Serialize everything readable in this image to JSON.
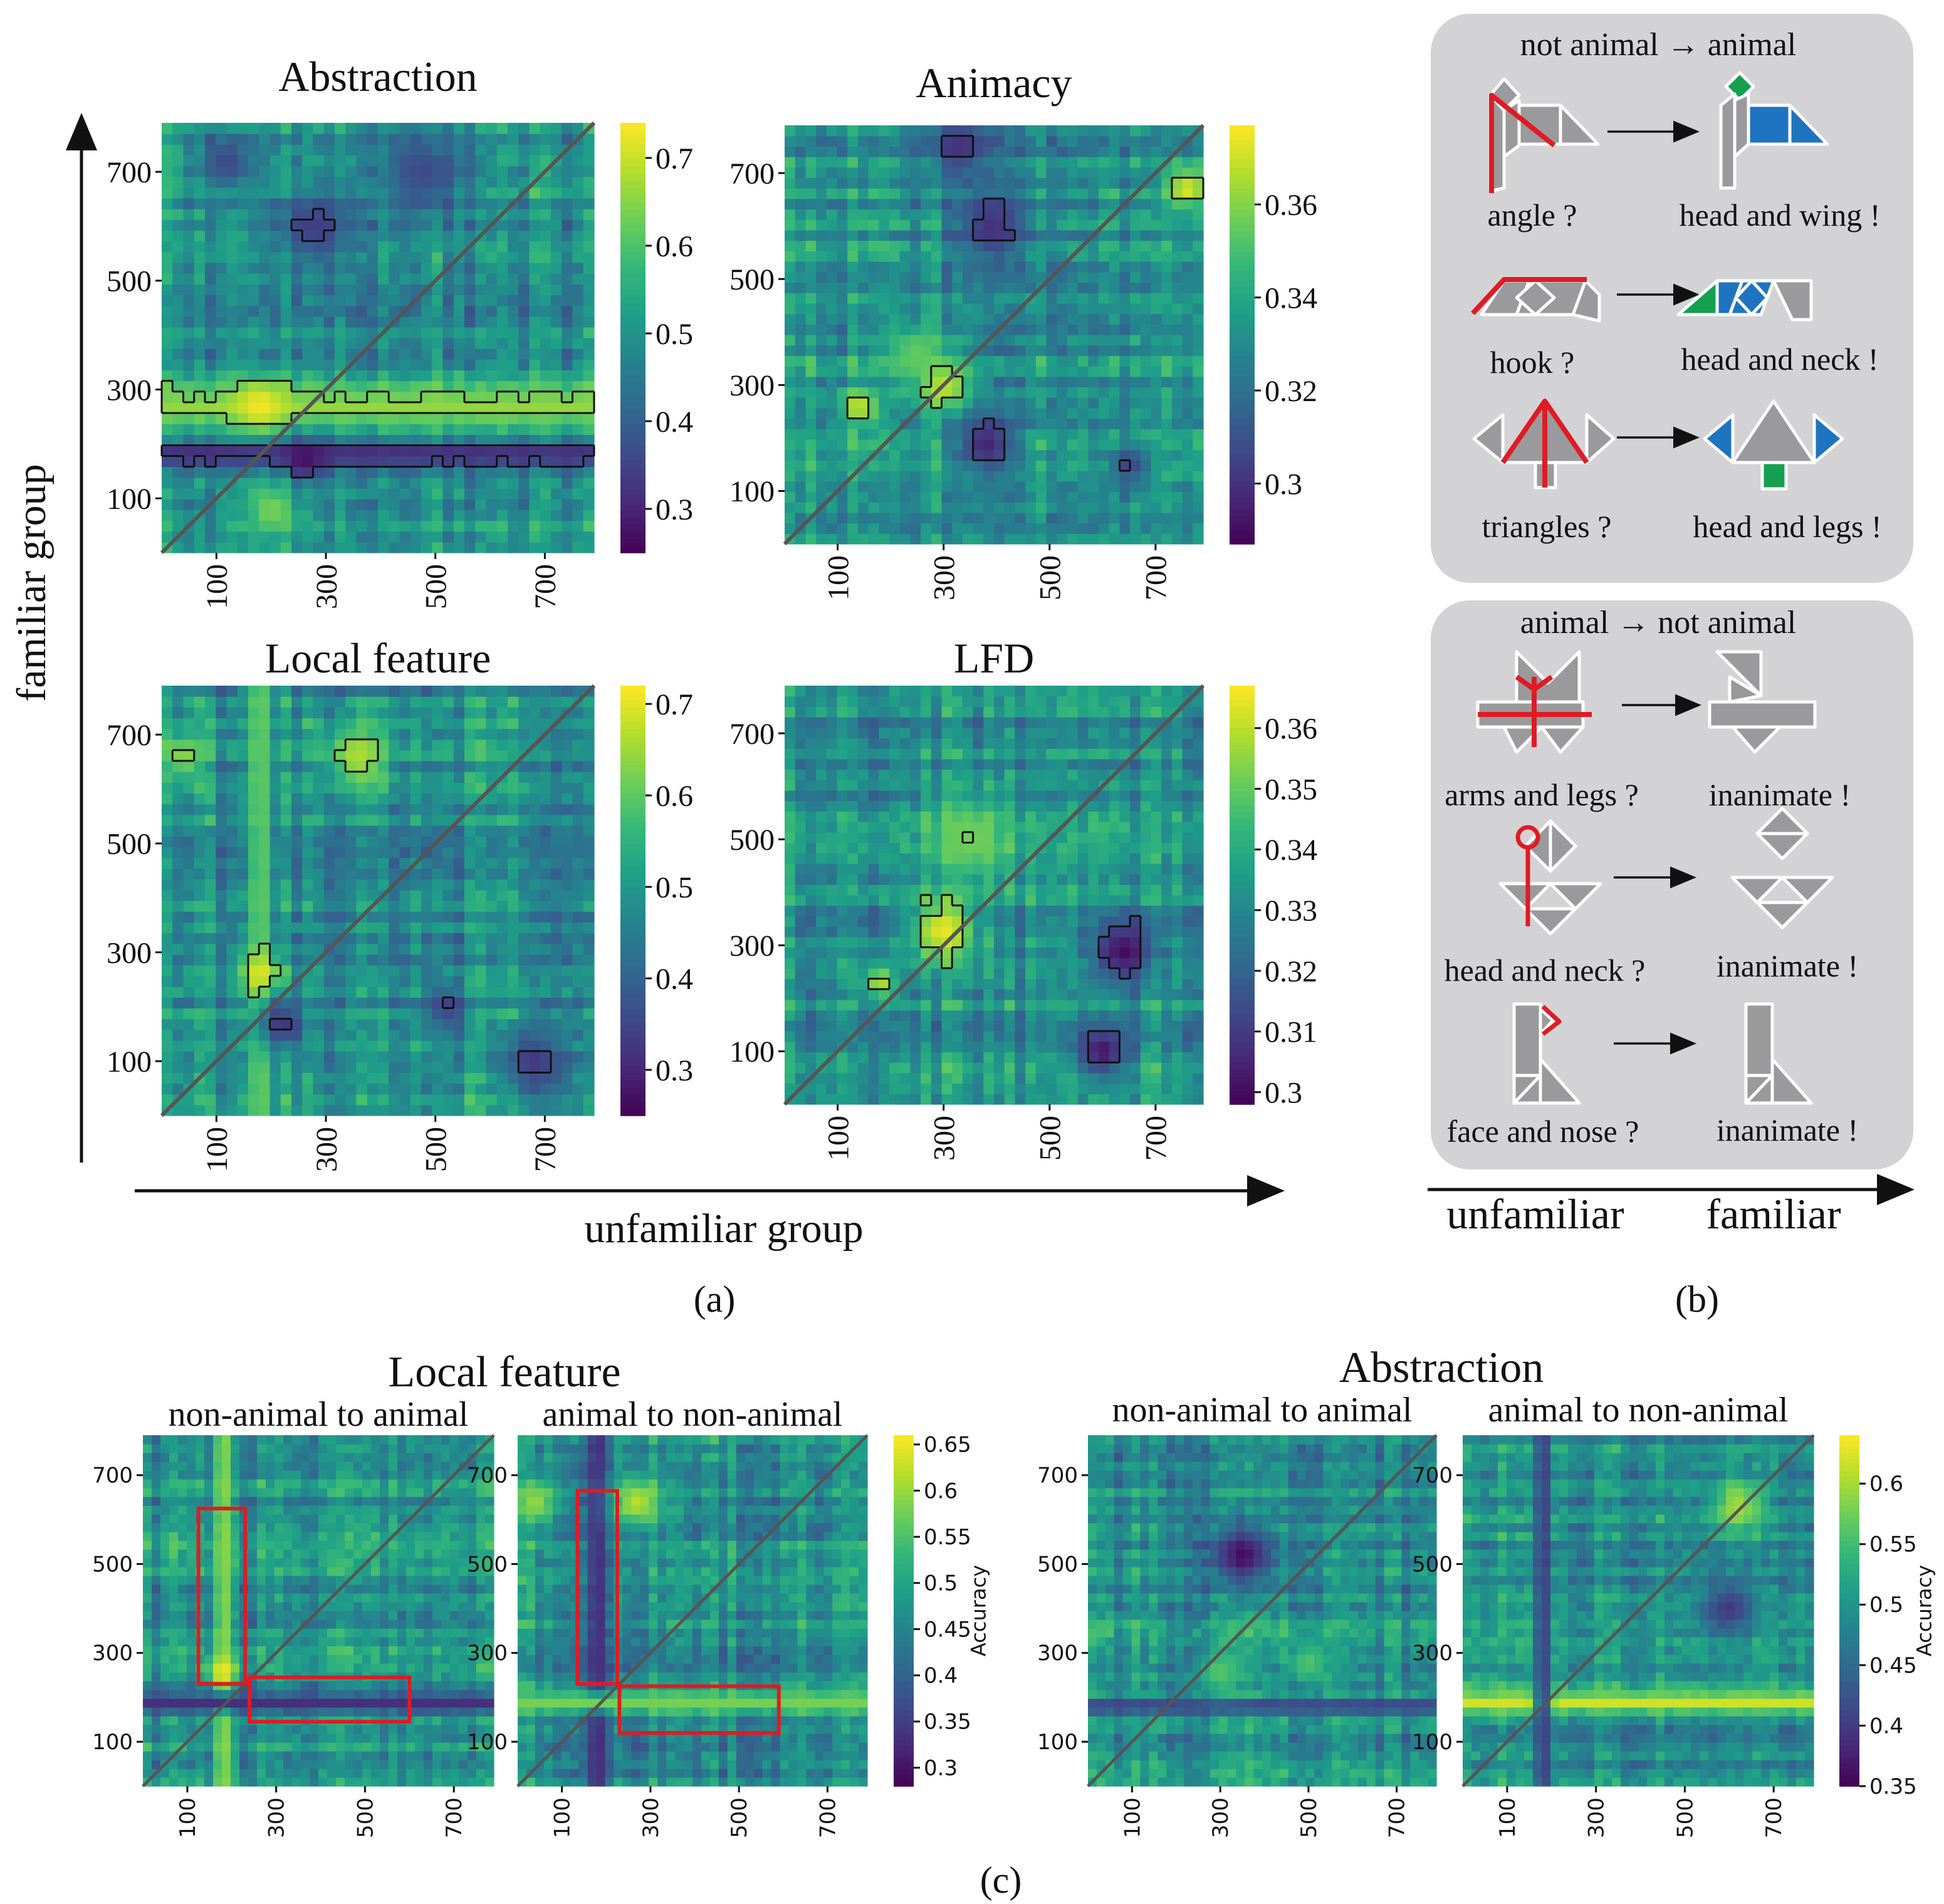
{
  "panel_labels": {
    "a": "(a)",
    "b": "(b)",
    "c": "(c)"
  },
  "axes": {
    "y_group": "familiar group",
    "x_group": "unfamiliar group"
  },
  "panel_b": {
    "box1": {
      "header": "not animal → animal",
      "rows": [
        {
          "left": "angle ?",
          "right": "head and wing !"
        },
        {
          "left": "hook ?",
          "right": "head and neck !"
        },
        {
          "left": "triangles ?",
          "right": "head and legs !"
        }
      ]
    },
    "box2": {
      "header": "animal → not animal",
      "rows": [
        {
          "left": "arms and legs ?",
          "right": "inanimate !"
        },
        {
          "left": "head and neck ?",
          "right": "inanimate !"
        },
        {
          "left": "face and nose ?",
          "right": "inanimate !"
        }
      ]
    },
    "bottom_axis": {
      "left": "unfamiliar",
      "right": "familiar"
    }
  },
  "panel_c": {
    "group_titles": [
      "Local feature",
      "Abstraction"
    ],
    "subtitles": [
      "non-animal to animal",
      "animal to non-animal",
      "non-animal to animal",
      "animal to non-animal"
    ],
    "colorbar_label": "Accuracy"
  },
  "colors": {
    "viridis": [
      "#440154",
      "#482878",
      "#3e4989",
      "#31688e",
      "#26828e",
      "#1f9e89",
      "#35b779",
      "#6ece58",
      "#b5de2b",
      "#fde725"
    ],
    "diagonal": "#555555",
    "highlight": "#e01b24",
    "panel_b_box": "#d3d3d5",
    "tangram_gray": "#9a9a9c",
    "tangram_blue": "#1e74c0",
    "tangram_green": "#14a050",
    "contour": "#111111"
  },
  "chart_data": [
    {
      "type": "heatmap",
      "title": "Abstraction",
      "xlabel": "unfamiliar group",
      "ylabel": "familiar group",
      "xticks": [
        100,
        300,
        500,
        700
      ],
      "yticks": [
        100,
        300,
        500,
        700
      ],
      "xlim": [
        0,
        790
      ],
      "ylim": [
        0,
        790
      ],
      "colorbar": {
        "min": 0.25,
        "max": 0.74,
        "ticks": [
          0.3,
          0.4,
          0.5,
          0.6,
          0.7
        ]
      },
      "diagonal": true,
      "contours": true,
      "features": [
        {
          "kind": "hband",
          "center": 270,
          "width": 70,
          "value": 0.66
        },
        {
          "kind": "hband",
          "center": 180,
          "width": 40,
          "value": 0.3
        },
        {
          "kind": "blob",
          "x": 180,
          "y": 270,
          "r": 45,
          "value": 0.73
        },
        {
          "kind": "blob",
          "x": 260,
          "y": 170,
          "r": 40,
          "value": 0.27
        },
        {
          "kind": "blob",
          "x": 200,
          "y": 80,
          "r": 50,
          "value": 0.64
        },
        {
          "kind": "blob",
          "x": 280,
          "y": 600,
          "r": 70,
          "value": 0.34
        },
        {
          "kind": "blob",
          "x": 480,
          "y": 700,
          "r": 80,
          "value": 0.36
        },
        {
          "kind": "blob",
          "x": 120,
          "y": 720,
          "r": 50,
          "value": 0.36
        }
      ]
    },
    {
      "type": "heatmap",
      "title": "Animacy",
      "xlabel": "unfamiliar group",
      "ylabel": "familiar group",
      "xticks": [
        100,
        300,
        500,
        700
      ],
      "yticks": [
        100,
        300,
        500,
        700
      ],
      "xlim": [
        0,
        790
      ],
      "ylim": [
        0,
        790
      ],
      "colorbar": {
        "min": 0.287,
        "max": 0.377,
        "ticks": [
          0.3,
          0.32,
          0.34,
          0.36
        ]
      },
      "diagonal": true,
      "contours": true,
      "features": [
        {
          "kind": "blob",
          "x": 300,
          "y": 300,
          "r": 50,
          "value": 0.372
        },
        {
          "kind": "blob",
          "x": 140,
          "y": 260,
          "r": 35,
          "value": 0.37
        },
        {
          "kind": "blob",
          "x": 380,
          "y": 190,
          "r": 55,
          "value": 0.296
        },
        {
          "kind": "blob",
          "x": 390,
          "y": 600,
          "r": 70,
          "value": 0.3
        },
        {
          "kind": "blob",
          "x": 330,
          "y": 750,
          "r": 60,
          "value": 0.3
        },
        {
          "kind": "blob",
          "x": 760,
          "y": 670,
          "r": 40,
          "value": 0.372
        },
        {
          "kind": "blob",
          "x": 250,
          "y": 360,
          "r": 60,
          "value": 0.355
        },
        {
          "kind": "blob",
          "x": 650,
          "y": 150,
          "r": 40,
          "value": 0.305
        }
      ]
    },
    {
      "type": "heatmap",
      "title": "Local feature",
      "xlabel": "unfamiliar group",
      "ylabel": "familiar group",
      "xticks": [
        100,
        300,
        500,
        700
      ],
      "yticks": [
        100,
        300,
        500,
        700
      ],
      "xlim": [
        0,
        790
      ],
      "ylim": [
        0,
        790
      ],
      "colorbar": {
        "min": 0.25,
        "max": 0.72,
        "ticks": [
          0.3,
          0.4,
          0.5,
          0.6,
          0.7
        ]
      },
      "diagonal": true,
      "contours": true,
      "features": [
        {
          "kind": "vband",
          "center": 180,
          "width": 40,
          "value": 0.6
        },
        {
          "kind": "blob",
          "x": 180,
          "y": 260,
          "r": 40,
          "value": 0.7
        },
        {
          "kind": "blob",
          "x": 360,
          "y": 660,
          "r": 60,
          "value": 0.66
        },
        {
          "kind": "blob",
          "x": 40,
          "y": 660,
          "r": 40,
          "value": 0.64
        },
        {
          "kind": "blob",
          "x": 220,
          "y": 170,
          "r": 45,
          "value": 0.32
        },
        {
          "kind": "blob",
          "x": 680,
          "y": 100,
          "r": 60,
          "value": 0.33
        },
        {
          "kind": "blob",
          "x": 520,
          "y": 200,
          "r": 40,
          "value": 0.34
        }
      ]
    },
    {
      "type": "heatmap",
      "title": "LFD",
      "xlabel": "unfamiliar group",
      "ylabel": "familiar group",
      "xticks": [
        100,
        300,
        500,
        700
      ],
      "yticks": [
        100,
        300,
        500,
        700
      ],
      "xlim": [
        0,
        790
      ],
      "ylim": [
        0,
        790
      ],
      "colorbar": {
        "min": 0.298,
        "max": 0.367,
        "ticks": [
          0.3,
          0.31,
          0.32,
          0.33,
          0.34,
          0.35,
          0.36
        ]
      },
      "diagonal": true,
      "contours": true,
      "features": [
        {
          "kind": "blob",
          "x": 300,
          "y": 330,
          "r": 60,
          "value": 0.365
        },
        {
          "kind": "blob",
          "x": 180,
          "y": 230,
          "r": 30,
          "value": 0.36
        },
        {
          "kind": "blob",
          "x": 640,
          "y": 290,
          "r": 60,
          "value": 0.3
        },
        {
          "kind": "blob",
          "x": 600,
          "y": 100,
          "r": 50,
          "value": 0.302
        },
        {
          "kind": "blob",
          "x": 350,
          "y": 500,
          "r": 80,
          "value": 0.352
        }
      ]
    },
    {
      "type": "heatmap",
      "title": "non-animal to animal",
      "group": "Local feature",
      "xticks": [
        100,
        300,
        500,
        700
      ],
      "yticks": [
        100,
        300,
        500,
        700
      ],
      "xlim": [
        0,
        790
      ],
      "ylim": [
        0,
        790
      ],
      "colorbar": null,
      "diagonal": true,
      "contours": false,
      "highlight_boxes": [
        {
          "x0": 125,
          "x1": 230,
          "y0": 230,
          "y1": 625
        },
        {
          "x0": 240,
          "x1": 600,
          "y0": 145,
          "y1": 245
        }
      ],
      "features": [
        {
          "kind": "vband",
          "center": 180,
          "width": 35,
          "value": 0.6
        },
        {
          "kind": "blob",
          "x": 180,
          "y": 260,
          "r": 30,
          "value": 0.65
        },
        {
          "kind": "hband",
          "center": 190,
          "width": 35,
          "value": 0.33
        }
      ]
    },
    {
      "type": "heatmap",
      "title": "animal to non-animal",
      "group": "Local feature",
      "xticks": [
        100,
        300,
        500,
        700
      ],
      "yticks": [
        100,
        300,
        500,
        700
      ],
      "xlim": [
        0,
        790
      ],
      "ylim": [
        0,
        790
      ],
      "colorbar": {
        "min": 0.28,
        "max": 0.66,
        "ticks": [
          0.3,
          0.35,
          0.4,
          0.45,
          0.5,
          0.55,
          0.6,
          0.65
        ],
        "label": "Accuracy"
      },
      "diagonal": true,
      "contours": false,
      "highlight_boxes": [
        {
          "x0": 135,
          "x1": 225,
          "y0": 230,
          "y1": 665
        },
        {
          "x0": 230,
          "x1": 590,
          "y0": 120,
          "y1": 225
        }
      ],
      "features": [
        {
          "kind": "vband",
          "center": 180,
          "width": 40,
          "value": 0.32
        },
        {
          "kind": "hband",
          "center": 190,
          "width": 40,
          "value": 0.58
        },
        {
          "kind": "blob",
          "x": 270,
          "y": 640,
          "r": 60,
          "value": 0.62
        },
        {
          "kind": "blob",
          "x": 40,
          "y": 640,
          "r": 50,
          "value": 0.6
        }
      ]
    },
    {
      "type": "heatmap",
      "title": "non-animal to animal",
      "group": "Abstraction",
      "xticks": [
        100,
        300,
        500,
        700
      ],
      "yticks": [
        100,
        300,
        500,
        700
      ],
      "xlim": [
        0,
        790
      ],
      "ylim": [
        0,
        790
      ],
      "colorbar": null,
      "diagonal": true,
      "contours": false,
      "features": [
        {
          "kind": "blob",
          "x": 350,
          "y": 520,
          "r": 70,
          "value": 0.36
        },
        {
          "kind": "hband",
          "center": 180,
          "width": 30,
          "value": 0.4
        },
        {
          "kind": "blob",
          "x": 300,
          "y": 260,
          "r": 50,
          "value": 0.56
        },
        {
          "kind": "blob",
          "x": 500,
          "y": 280,
          "r": 50,
          "value": 0.56
        }
      ]
    },
    {
      "type": "heatmap",
      "title": "animal to non-animal",
      "group": "Abstraction",
      "xticks": [
        100,
        300,
        500,
        700
      ],
      "yticks": [
        100,
        300,
        500,
        700
      ],
      "xlim": [
        0,
        790
      ],
      "ylim": [
        0,
        790
      ],
      "colorbar": {
        "min": 0.35,
        "max": 0.64,
        "ticks": [
          0.35,
          0.4,
          0.45,
          0.5,
          0.55,
          0.6
        ],
        "label": "Accuracy"
      },
      "diagonal": true,
      "contours": false,
      "features": [
        {
          "kind": "hband",
          "center": 190,
          "width": 45,
          "value": 0.62
        },
        {
          "kind": "vband",
          "center": 180,
          "width": 30,
          "value": 0.4
        },
        {
          "kind": "blob",
          "x": 620,
          "y": 630,
          "r": 60,
          "value": 0.6
        },
        {
          "kind": "blob",
          "x": 600,
          "y": 400,
          "r": 60,
          "value": 0.4
        }
      ]
    }
  ]
}
